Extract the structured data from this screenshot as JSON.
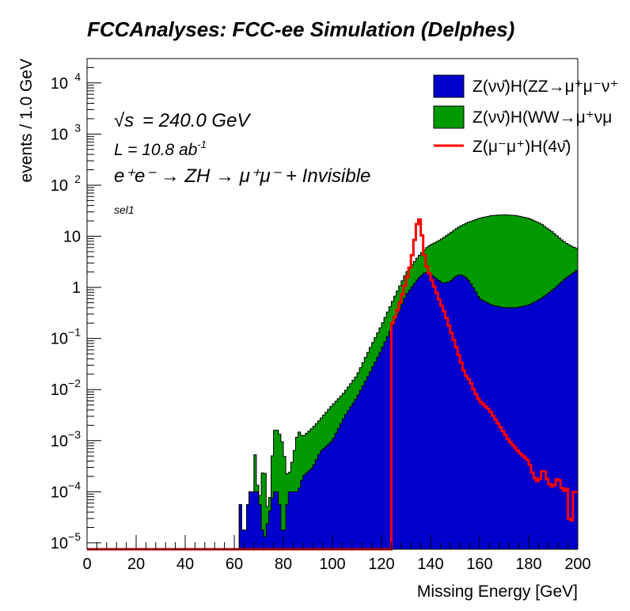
{
  "title": "FCCAnalyses: FCC-ee Simulation (Delphes)",
  "annotations": {
    "sqrt_s": "= 240.0 GeV",
    "lumi": "L = 10.8 ab",
    "lumi_exp": "-1",
    "process": "e⁺e⁻ → ZH → μ⁺μ⁻ + Invisible",
    "selection": "sel1"
  },
  "colors": {
    "zz": "#0000cc",
    "ww": "#009900",
    "h4nu": "#ff0000"
  },
  "chart_data": {
    "type": "histogram",
    "xlabel": "Missing Energy [GeV]",
    "ylabel": "events / 1.0 GeV",
    "xlim": [
      0,
      200
    ],
    "ylim": [
      7.5e-06,
      30000
    ],
    "ylog": true,
    "stacked": true,
    "legend_position": "top-right",
    "xticks": [
      0,
      20,
      40,
      60,
      80,
      100,
      120,
      140,
      160,
      180,
      200
    ],
    "yticks": [
      {
        "value": 1e-05,
        "label": "10",
        "exp": "−5"
      },
      {
        "value": 0.0001,
        "label": "10",
        "exp": "−4"
      },
      {
        "value": 0.001,
        "label": "10",
        "exp": "−3"
      },
      {
        "value": 0.01,
        "label": "10",
        "exp": "−2"
      },
      {
        "value": 0.1,
        "label": "10",
        "exp": "−1"
      },
      {
        "value": 1,
        "label": "1",
        "exp": ""
      },
      {
        "value": 10,
        "label": "10",
        "exp": ""
      },
      {
        "value": 100,
        "label": "10",
        "exp": "2"
      },
      {
        "value": 1000,
        "label": "10",
        "exp": "3"
      },
      {
        "value": 10000,
        "label": "10",
        "exp": "4"
      }
    ],
    "series": [
      {
        "name": "Z(νν̄)H(ZZ→μ⁺μ⁻ν⁺",
        "style": "fill",
        "color": "#0000cc",
        "points": [
          [
            62,
            0.0001
          ],
          [
            64,
            1e-05
          ],
          [
            66,
            0.0001
          ],
          [
            70,
            0.0001
          ],
          [
            72,
            1e-05
          ],
          [
            76,
            0.0001
          ],
          [
            78,
            0.0001
          ],
          [
            80,
            1e-05
          ],
          [
            82,
            0.0001
          ],
          [
            86,
            0.0001
          ],
          [
            88,
            0.0002
          ],
          [
            92,
            0.0003
          ],
          [
            95,
            0.0006
          ],
          [
            100,
            0.001
          ],
          [
            105,
            0.003
          ],
          [
            110,
            0.007
          ],
          [
            115,
            0.02
          ],
          [
            120,
            0.06
          ],
          [
            125,
            0.2
          ],
          [
            130,
            0.7
          ],
          [
            135,
            1.5
          ],
          [
            138,
            2.0
          ],
          [
            140,
            1.8
          ],
          [
            145,
            1.2
          ],
          [
            148,
            1.3
          ],
          [
            150,
            1.6
          ],
          [
            152,
            1.8
          ],
          [
            155,
            1.5
          ],
          [
            158,
            0.9
          ],
          [
            160,
            0.6
          ],
          [
            165,
            0.45
          ],
          [
            170,
            0.4
          ],
          [
            175,
            0.4
          ],
          [
            180,
            0.45
          ],
          [
            185,
            0.6
          ],
          [
            190,
            0.9
          ],
          [
            195,
            1.5
          ],
          [
            200,
            2.2
          ]
        ]
      },
      {
        "name": "Z(νν̄)H(WW→μ⁺νμ",
        "style": "fill",
        "color": "#009900",
        "points": [
          [
            68,
            0.0015
          ],
          [
            70,
            1e-05
          ],
          [
            72,
            0.0006
          ],
          [
            74,
            1e-05
          ],
          [
            76,
            0.0015
          ],
          [
            78,
            0.0015
          ],
          [
            80,
            0.0008
          ],
          [
            82,
            0.0001
          ],
          [
            86,
            0.0015
          ],
          [
            88,
            0.001
          ],
          [
            92,
            0.0015
          ],
          [
            95,
            0.002
          ],
          [
            100,
            0.004
          ],
          [
            105,
            0.006
          ],
          [
            110,
            0.012
          ],
          [
            115,
            0.04
          ],
          [
            120,
            0.12
          ],
          [
            125,
            0.4
          ],
          [
            130,
            1.2
          ],
          [
            135,
            2.5
          ],
          [
            140,
            5
          ],
          [
            145,
            8
          ],
          [
            150,
            12
          ],
          [
            155,
            17
          ],
          [
            160,
            22
          ],
          [
            165,
            25
          ],
          [
            170,
            26
          ],
          [
            175,
            25
          ],
          [
            180,
            22
          ],
          [
            185,
            17
          ],
          [
            190,
            11
          ],
          [
            195,
            6
          ],
          [
            200,
            3.5
          ]
        ]
      },
      {
        "name": "Z(μ⁻μ⁺)H(4ν̄)",
        "style": "line",
        "color": "#ff0000",
        "points": [
          [
            0,
            7.5e-06
          ],
          [
            124,
            7.5e-06
          ],
          [
            124.5,
            0.2
          ],
          [
            126,
            0.3
          ],
          [
            128,
            0.6
          ],
          [
            130,
            1.3
          ],
          [
            132,
            3
          ],
          [
            134,
            12
          ],
          [
            135,
            25
          ],
          [
            136,
            18
          ],
          [
            137,
            6
          ],
          [
            138,
            3
          ],
          [
            140,
            1.6
          ],
          [
            142,
            0.9
          ],
          [
            144,
            0.5
          ],
          [
            146,
            0.3
          ],
          [
            148,
            0.15
          ],
          [
            150,
            0.08
          ],
          [
            152,
            0.04
          ],
          [
            154,
            0.02
          ],
          [
            156,
            0.015
          ],
          [
            158,
            0.009
          ],
          [
            160,
            0.006
          ],
          [
            164,
            0.004
          ],
          [
            168,
            0.002
          ],
          [
            172,
            0.001
          ],
          [
            176,
            0.0006
          ],
          [
            180,
            0.0004
          ],
          [
            182,
            0.0002
          ],
          [
            184,
            0.00015
          ],
          [
            186,
            0.0003
          ],
          [
            188,
            0.00015
          ],
          [
            190,
            0.00012
          ],
          [
            192,
            0.0002
          ],
          [
            194,
            0.0001
          ],
          [
            196,
            0.00012
          ],
          [
            197,
            7.5e-06
          ],
          [
            198,
            0.0001
          ],
          [
            200,
            0.0001
          ]
        ]
      }
    ]
  }
}
